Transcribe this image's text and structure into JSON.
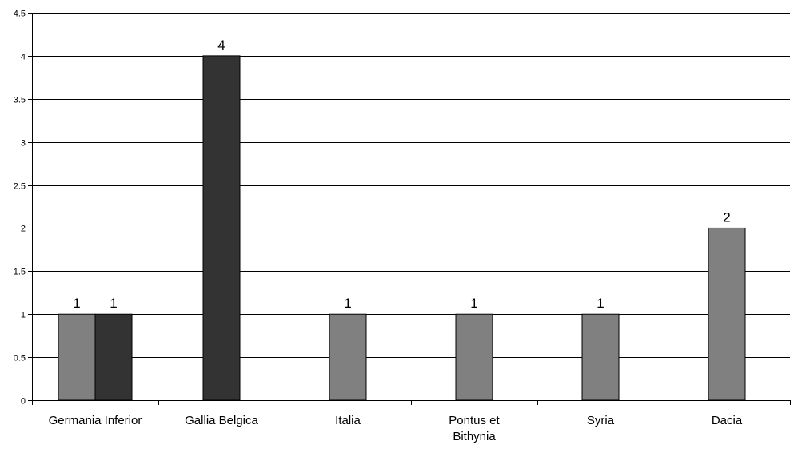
{
  "chart_data": {
    "type": "bar",
    "categories": [
      "Germania Inferior",
      "Gallia Belgica",
      "Italia",
      "Pontus et Bithynia",
      "Syria",
      "Dacia"
    ],
    "series": [
      {
        "values": [
          1,
          0,
          1,
          1,
          1,
          2
        ],
        "color": "#808080"
      },
      {
        "values": [
          1,
          4,
          0,
          0,
          0,
          0
        ],
        "color": "#333333"
      }
    ],
    "ylim": [
      0,
      4.5
    ],
    "yticks": [
      0,
      0.5,
      1,
      1.5,
      2,
      2.5,
      3,
      3.5,
      4,
      4.5
    ],
    "grid": true,
    "legend": "none",
    "title": "",
    "xlabel": "",
    "ylabel": ""
  }
}
